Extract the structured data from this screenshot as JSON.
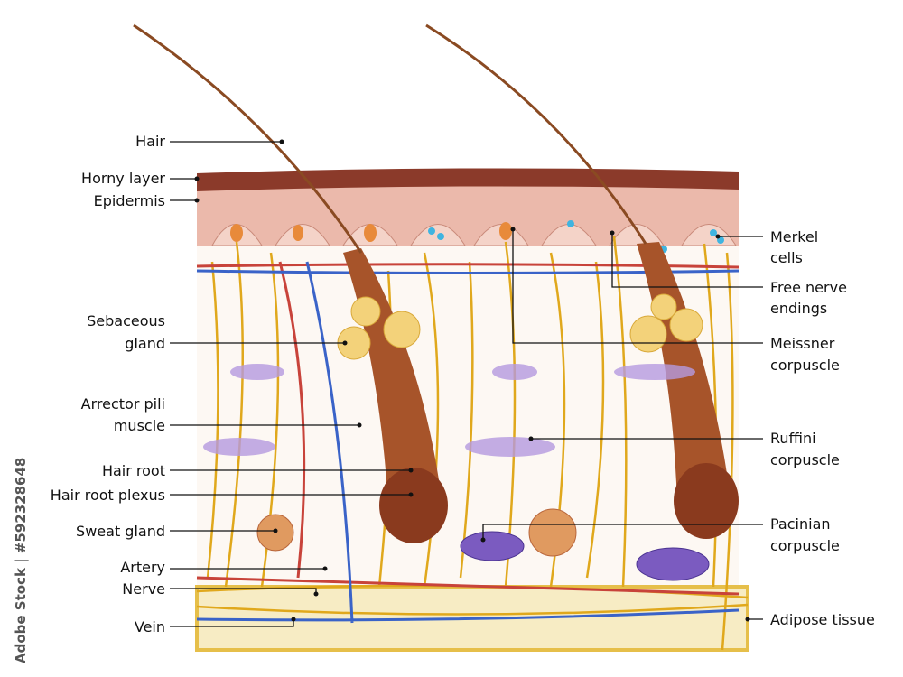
{
  "left_labels": {
    "hair": "Hair",
    "horny_layer": "Horny layer",
    "epidermis": "Epidermis",
    "sebaceous_gland": [
      "Sebaceous",
      "gland"
    ],
    "arrector_pili": [
      "Arrector pili",
      "muscle"
    ],
    "hair_root": "Hair root",
    "hair_root_plexus": "Hair root plexus",
    "sweat_gland": "Sweat gland",
    "artery": "Artery",
    "nerve": "Nerve",
    "vein": "Vein"
  },
  "right_labels": {
    "merkel": [
      "Merkel",
      "cells"
    ],
    "free_nerve": [
      "Free nerve",
      "endings"
    ],
    "meissner": [
      "Meissner",
      "corpuscle"
    ],
    "ruffini": [
      "Ruffini",
      "corpuscle"
    ],
    "pacinian": [
      "Pacinian",
      "corpuscle"
    ],
    "adipose": "Adipose tissue"
  },
  "watermark": "Adobe Stock | #592328648",
  "colors": {
    "horny_layer": "#8b3a2a",
    "epidermis": "#ebb9ab",
    "nerve": "#e0a81c",
    "artery": "#c8433a",
    "vein": "#3a63c8",
    "adipose": "#f3e3a4",
    "hair": "#8a4a22"
  }
}
